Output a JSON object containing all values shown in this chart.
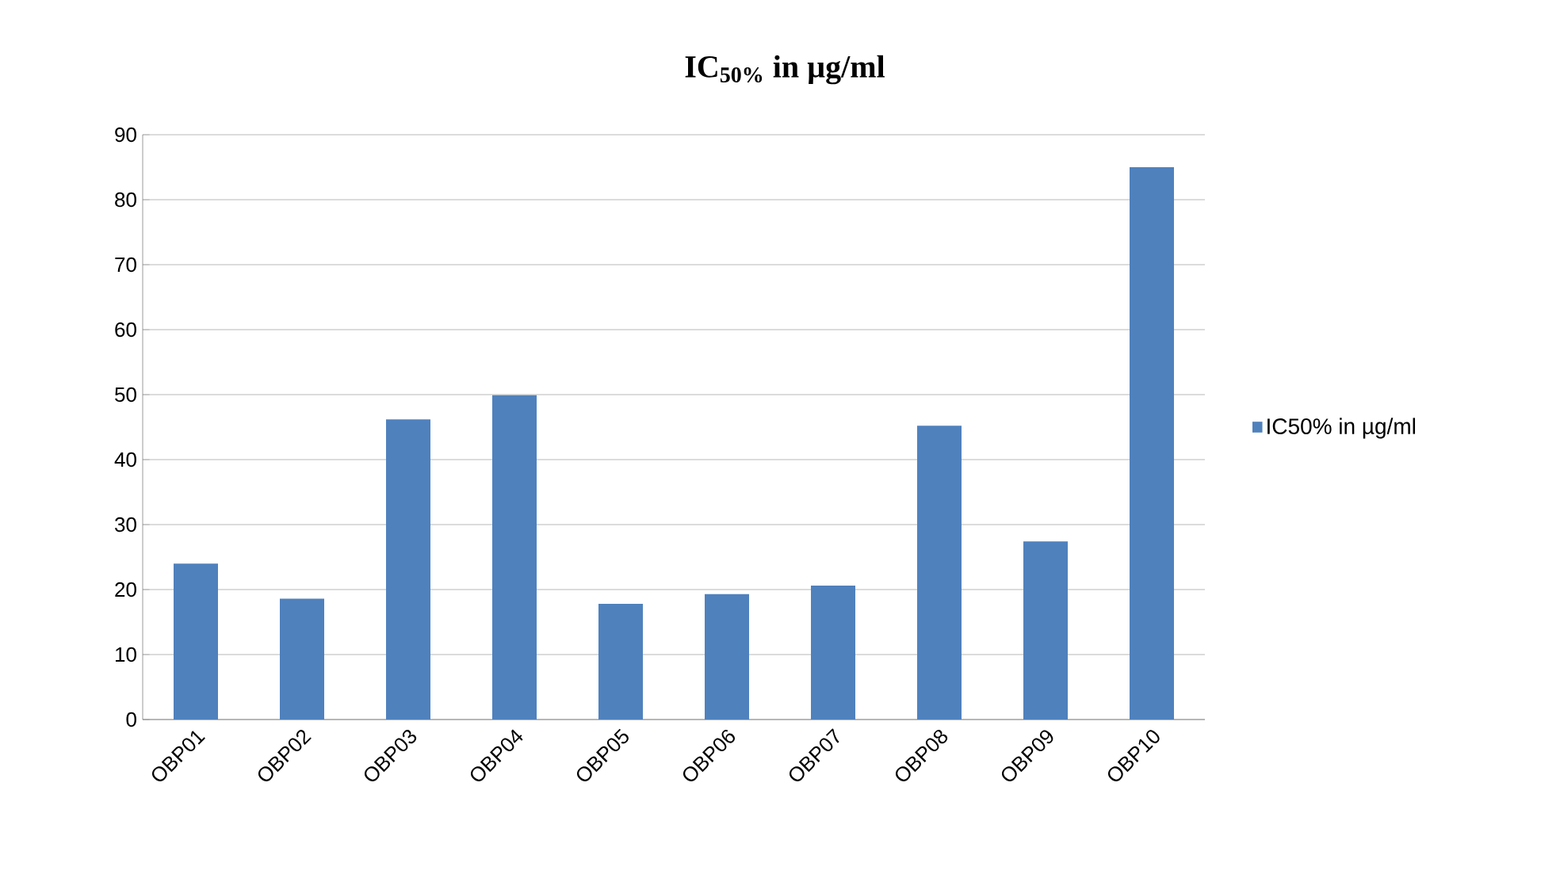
{
  "chart_data": {
    "type": "bar",
    "title": "IC$_{50%}$ in µg/ml",
    "categories": [
      "OBP01",
      "OBP02",
      "OBP03",
      "OBP04",
      "OBP05",
      "OBP06",
      "OBP07",
      "OBP08",
      "OBP09",
      "OBP10"
    ],
    "series": [
      {
        "name": "IC50% in µg/ml",
        "color": "#4f81bd",
        "values": [
          24,
          18.6,
          46.2,
          49.9,
          17.8,
          19.3,
          20.6,
          45.2,
          27.4,
          85
        ]
      }
    ],
    "ylim": [
      0,
      90
    ],
    "yticks": [
      0,
      10,
      20,
      30,
      40,
      50,
      60,
      70,
      80,
      90
    ],
    "grid": "y",
    "legend": "right"
  }
}
